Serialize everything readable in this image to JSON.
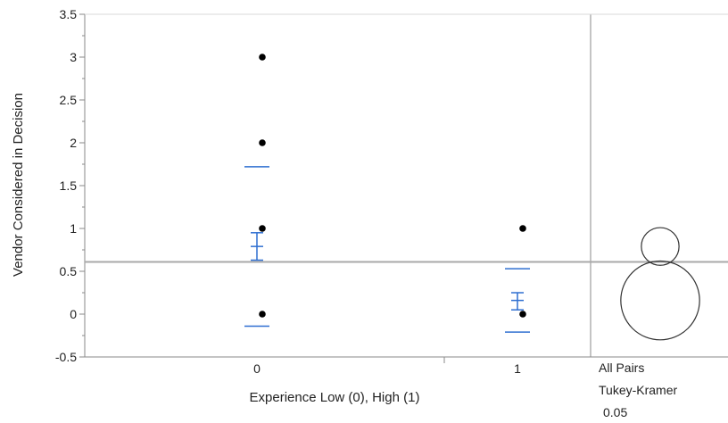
{
  "chart_data": {
    "type": "scatter",
    "xlabel": "Experience Low (0), High (1)",
    "ylabel": "Vendor Considered in Decision",
    "ylim": [
      -0.5,
      3.5
    ],
    "yticks": [
      "-0.5",
      "0",
      "0.5",
      "1",
      "1.5",
      "2",
      "2.5",
      "3",
      "3.5"
    ],
    "categories": [
      "0",
      "1"
    ],
    "points": [
      {
        "group": "0",
        "y": 3
      },
      {
        "group": "0",
        "y": 2
      },
      {
        "group": "0",
        "y": 1
      },
      {
        "group": "0",
        "y": 0
      },
      {
        "group": "1",
        "y": 1
      },
      {
        "group": "1",
        "y": 0
      }
    ],
    "groups": [
      {
        "category": "0",
        "mean": 0.79,
        "ci_low": 0.63,
        "ci_high": 0.95,
        "sd_high": 1.72,
        "sd_low": -0.14
      },
      {
        "category": "1",
        "mean": 0.16,
        "ci_low": 0.05,
        "ci_high": 0.25,
        "sd_high": 0.53,
        "sd_low": -0.21
      }
    ],
    "grand_mean": 0.61,
    "comparison": {
      "method_line1": "All Pairs",
      "method_line2": "Tukey-Kramer",
      "alpha": "0.05",
      "circles": [
        {
          "category": "0",
          "center": 0.79,
          "radius": 0.22
        },
        {
          "category": "1",
          "center": 0.16,
          "radius": 0.46
        }
      ]
    },
    "colors": {
      "points": "#000000",
      "mean_lines": "#2f6fd1",
      "grand_mean_line": "#a8a8a8",
      "circles": "#333333",
      "frame": "#8a8a8a"
    },
    "grid": false
  }
}
